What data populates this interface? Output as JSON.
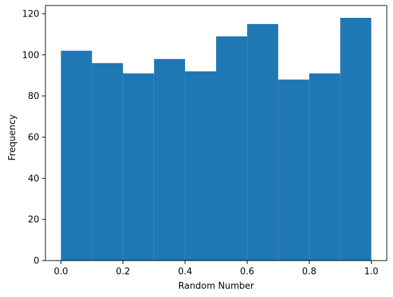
{
  "chart_data": {
    "type": "bar",
    "subtype": "histogram",
    "bins": [
      {
        "x0": 0.0,
        "x1": 0.1,
        "value": 102
      },
      {
        "x0": 0.1,
        "x1": 0.2,
        "value": 96
      },
      {
        "x0": 0.2,
        "x1": 0.3,
        "value": 91
      },
      {
        "x0": 0.3,
        "x1": 0.4,
        "value": 98
      },
      {
        "x0": 0.4,
        "x1": 0.5,
        "value": 92
      },
      {
        "x0": 0.5,
        "x1": 0.6,
        "value": 109
      },
      {
        "x0": 0.6,
        "x1": 0.7,
        "value": 115
      },
      {
        "x0": 0.7,
        "x1": 0.8,
        "value": 88
      },
      {
        "x0": 0.8,
        "x1": 0.9,
        "value": 91
      },
      {
        "x0": 0.9,
        "x1": 1.0,
        "value": 118
      }
    ],
    "title": "",
    "xlabel": "Random Number",
    "ylabel": "Frequency",
    "xlim": [
      -0.05,
      1.05
    ],
    "ylim": [
      0,
      124
    ],
    "xticks": [
      0.0,
      0.2,
      0.4,
      0.6,
      0.8,
      1.0
    ],
    "xtick_labels": [
      "0.0",
      "0.2",
      "0.4",
      "0.6",
      "0.8",
      "1.0"
    ],
    "yticks": [
      0,
      20,
      40,
      60,
      80,
      100,
      120
    ],
    "ytick_labels": [
      "0",
      "20",
      "40",
      "60",
      "80",
      "100",
      "120"
    ],
    "grid": false,
    "legend": "none",
    "bar_color": "#1f77b4"
  }
}
